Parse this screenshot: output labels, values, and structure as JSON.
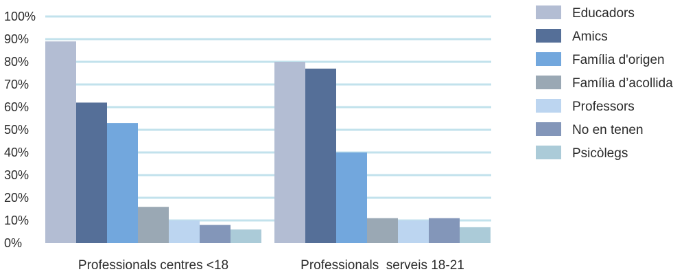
{
  "chart_data": {
    "type": "bar",
    "categories": [
      "Professionals centres <18",
      "Professionals  serveis 18-21"
    ],
    "series": [
      {
        "name": "Educadors",
        "color": "#b3bdd3",
        "values": [
          89,
          80
        ]
      },
      {
        "name": "Amics",
        "color": "#556f98",
        "values": [
          62,
          77
        ]
      },
      {
        "name": "Família d'origen",
        "color": "#72a7dd",
        "values": [
          53,
          40
        ]
      },
      {
        "name": "Família d’acollida",
        "color": "#9aa8b4",
        "values": [
          16,
          11
        ]
      },
      {
        "name": "Professors",
        "color": "#bcd5f0",
        "values": [
          10,
          10
        ]
      },
      {
        "name": "No en tenen",
        "color": "#8396b9",
        "values": [
          8,
          11
        ]
      },
      {
        "name": "Psicòlegs",
        "color": "#abcbd8",
        "values": [
          6,
          7
        ]
      }
    ],
    "y_ticks": [
      "0%",
      "10%",
      "20%",
      "30%",
      "40%",
      "50%",
      "60%",
      "70%",
      "80%",
      "90%",
      "100%"
    ],
    "ylim": [
      0,
      100
    ],
    "grid": true,
    "grid_color": "#c2e2ec",
    "legend_position": "right"
  }
}
